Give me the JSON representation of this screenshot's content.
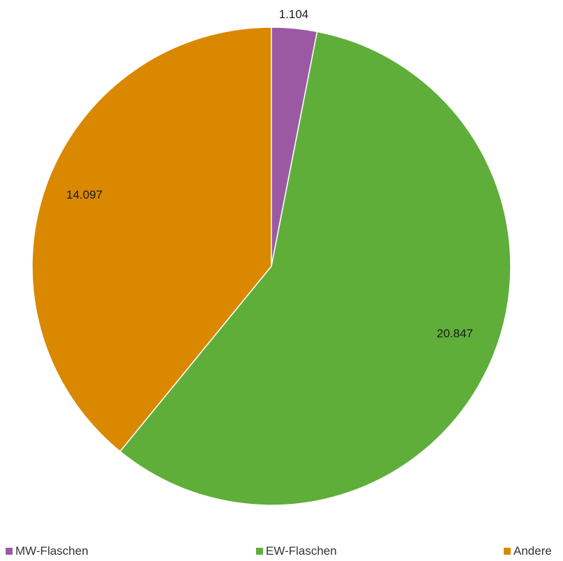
{
  "chart_data": {
    "type": "pie",
    "categories": [
      "MW-Flaschen",
      "EW-Flaschen",
      "Andere"
    ],
    "values": [
      1104,
      20847,
      14097
    ],
    "value_labels": [
      "1.104",
      "20.847",
      "14.097"
    ],
    "colors": [
      "#9b59a4",
      "#5fae3a",
      "#d98800"
    ],
    "start_angle": "12 o'clock",
    "direction": "clockwise",
    "legend_position": "bottom"
  }
}
